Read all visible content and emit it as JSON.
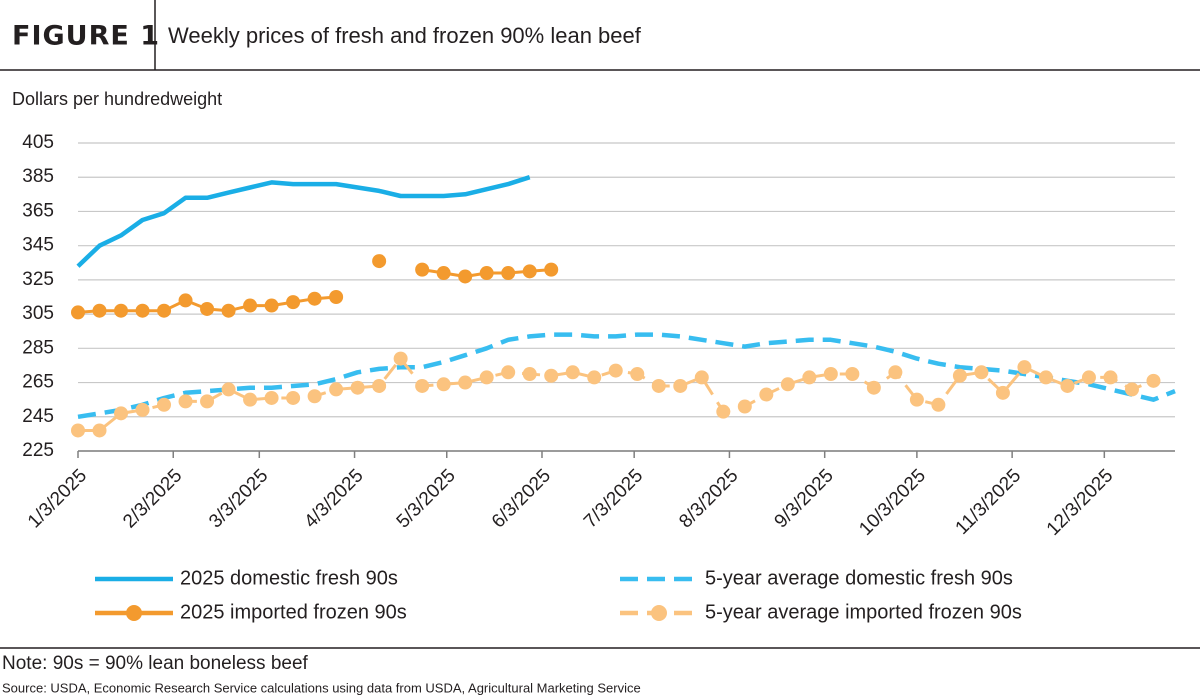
{
  "chart_data": {
    "type": "line",
    "figure_label": "FIGURE 1",
    "title": "Weekly prices of fresh and frozen 90% lean beef",
    "y_label": "Dollars per hundredweight",
    "note": "Note: 90s = 90% lean boneless beef",
    "source": "Source: USDA, Economic Research Service calculations using data from USDA, Agricultural Marketing Service",
    "x": [
      "2025-01-03",
      "2025-01-10",
      "2025-01-17",
      "2025-01-24",
      "2025-01-31",
      "2025-02-07",
      "2025-02-14",
      "2025-02-21",
      "2025-02-28",
      "2025-03-07",
      "2025-03-14",
      "2025-03-21",
      "2025-03-28",
      "2025-04-04",
      "2025-04-11",
      "2025-04-18",
      "2025-04-25",
      "2025-05-02",
      "2025-05-09",
      "2025-05-16",
      "2025-05-23",
      "2025-05-30",
      "2025-06-06",
      "2025-06-13",
      "2025-06-20",
      "2025-06-27",
      "2025-07-04",
      "2025-07-11",
      "2025-07-18",
      "2025-07-25",
      "2025-08-01",
      "2025-08-08",
      "2025-08-15",
      "2025-08-22",
      "2025-08-29",
      "2025-09-05",
      "2025-09-12",
      "2025-09-19",
      "2025-09-26",
      "2025-10-03",
      "2025-10-10",
      "2025-10-17",
      "2025-10-24",
      "2025-10-31",
      "2025-11-07",
      "2025-11-14",
      "2025-11-21",
      "2025-11-28",
      "2025-12-05",
      "2025-12-12",
      "2025-12-19",
      "2025-12-26"
    ],
    "xlim": [
      "2025-01-03",
      "2025-12-26"
    ],
    "xticks": [
      {
        "value": "2025-01-03",
        "label": "1/3/2025"
      },
      {
        "value": "2025-02-03",
        "label": "2/3/2025"
      },
      {
        "value": "2025-03-03",
        "label": "3/3/2025"
      },
      {
        "value": "2025-04-03",
        "label": "4/3/2025"
      },
      {
        "value": "2025-05-03",
        "label": "5/3/2025"
      },
      {
        "value": "2025-06-03",
        "label": "6/3/2025"
      },
      {
        "value": "2025-07-03",
        "label": "7/3/2025"
      },
      {
        "value": "2025-08-03",
        "label": "8/3/2025"
      },
      {
        "value": "2025-09-03",
        "label": "9/3/2025"
      },
      {
        "value": "2025-10-03",
        "label": "10/3/2025"
      },
      {
        "value": "2025-11-03",
        "label": "11/3/2025"
      },
      {
        "value": "2025-12-03",
        "label": "12/3/2025"
      }
    ],
    "ylim": [
      225,
      405
    ],
    "yticks": [
      225,
      245,
      265,
      285,
      305,
      325,
      345,
      365,
      385,
      405
    ],
    "grid": true,
    "series": [
      {
        "name": "2025 domestic fresh 90s",
        "color": "#1aaee6",
        "dashed": false,
        "markers": false,
        "values": [
          333,
          345,
          351,
          360,
          364,
          373,
          373,
          376,
          379,
          382,
          381,
          381,
          381,
          379,
          377,
          374,
          374,
          374,
          375,
          378,
          381,
          385,
          null,
          null,
          null,
          null,
          null,
          null,
          null,
          null,
          null,
          null,
          null,
          null,
          null,
          null,
          null,
          null,
          null,
          null,
          null,
          null,
          null,
          null,
          null,
          null,
          null,
          null,
          null,
          null,
          null,
          null
        ]
      },
      {
        "name": "5-year average domestic fresh 90s",
        "color": "#38bdf0",
        "dashed": true,
        "markers": false,
        "values": [
          245,
          247,
          249,
          252,
          256,
          259,
          260,
          261,
          262,
          262,
          263,
          264,
          267,
          271,
          273,
          274,
          274,
          277,
          281,
          285,
          290,
          292,
          293,
          293,
          292,
          292,
          293,
          293,
          292,
          290,
          288,
          286,
          288,
          289,
          290,
          290,
          288,
          286,
          283,
          279,
          276,
          274,
          273,
          272,
          270,
          268,
          266,
          264,
          261,
          258,
          255,
          260
        ]
      },
      {
        "name": "2025 imported frozen 90s",
        "color": "#f39a2e",
        "dashed": false,
        "markers": true,
        "values": [
          306,
          307,
          307,
          307,
          307,
          313,
          308,
          307,
          310,
          310,
          312,
          314,
          315,
          null,
          336,
          null,
          331,
          329,
          327,
          329,
          329,
          330,
          331,
          null,
          null,
          null,
          null,
          null,
          null,
          null,
          null,
          null,
          null,
          null,
          null,
          null,
          null,
          null,
          null,
          null,
          null,
          null,
          null,
          null,
          null,
          null,
          null,
          null,
          null,
          null,
          null,
          null
        ]
      },
      {
        "name": "5-year average imported frozen 90s",
        "color": "#fbc37f",
        "dashed": true,
        "markers": true,
        "values": [
          237,
          237,
          247,
          249,
          252,
          254,
          254,
          261,
          255,
          256,
          256,
          257,
          261,
          262,
          263,
          279,
          263,
          264,
          265,
          268,
          271,
          270,
          269,
          271,
          268,
          272,
          270,
          263,
          263,
          268,
          248,
          251,
          258,
          264,
          268,
          270,
          270,
          262,
          271,
          255,
          252,
          269,
          271,
          259,
          274,
          268,
          263,
          268,
          268,
          261,
          266,
          null
        ]
      }
    ]
  }
}
